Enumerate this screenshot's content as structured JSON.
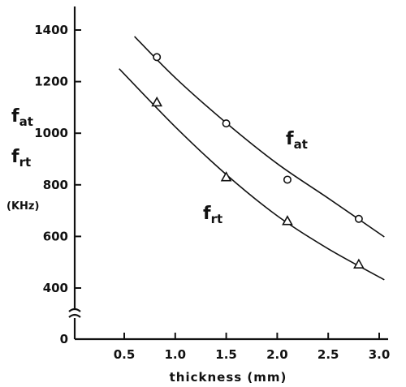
{
  "chart_data": {
    "type": "scatter",
    "xlabel": "thickness (mm)",
    "x_ticks": [
      "0.5",
      "1.0",
      "1.5",
      "2.0",
      "2.5",
      "3.0"
    ],
    "y_ticks": [
      "0",
      "400",
      "600",
      "800",
      "1000",
      "1200",
      "1400"
    ],
    "y_axis_break": "between 0 and 400",
    "xlim": [
      0,
      3.2
    ],
    "ylim": [
      0,
      1520
    ],
    "y_labels": {
      "fat": {
        "base": "f",
        "sub": "at"
      },
      "frt": {
        "base": "f",
        "sub": "rt"
      },
      "unit": "(KHz)"
    },
    "series": [
      {
        "name_base": "f",
        "name_sub": "at",
        "marker": "circle",
        "points": [
          [
            0.82,
            1295
          ],
          [
            1.5,
            1038
          ],
          [
            2.1,
            820
          ],
          [
            2.8,
            668
          ]
        ],
        "curve": [
          [
            0.6,
            1375
          ],
          [
            1.0,
            1215
          ],
          [
            1.5,
            1040
          ],
          [
            2.0,
            882
          ],
          [
            2.5,
            748
          ],
          [
            3.05,
            598
          ]
        ]
      },
      {
        "name_base": "f",
        "name_sub": "rt",
        "marker": "triangle",
        "points": [
          [
            0.82,
            1120
          ],
          [
            1.5,
            830
          ],
          [
            2.1,
            660
          ],
          [
            2.8,
            492
          ]
        ],
        "curve": [
          [
            0.45,
            1250
          ],
          [
            1.0,
            1025
          ],
          [
            1.5,
            840
          ],
          [
            2.0,
            680
          ],
          [
            2.5,
            552
          ],
          [
            3.05,
            432
          ]
        ]
      }
    ]
  }
}
